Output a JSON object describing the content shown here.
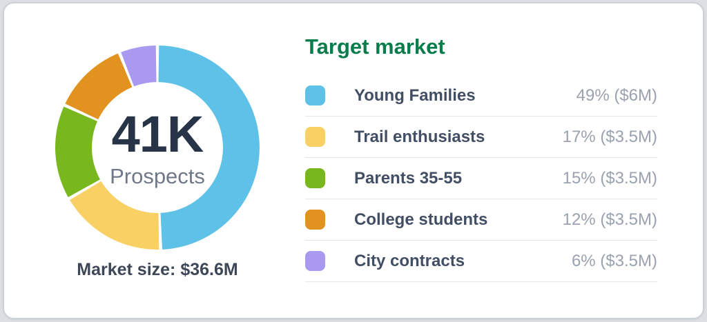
{
  "donut": {
    "center_value": "41K",
    "center_label": "Prospects",
    "caption": "Market size: $36.6M"
  },
  "legend": {
    "title": "Target market",
    "items": [
      {
        "label": "Young Families",
        "value": "49% ($6M)",
        "color": "#5ec1e8"
      },
      {
        "label": "Trail enthusiasts",
        "value": "17% ($3.5M)",
        "color": "#f8d064"
      },
      {
        "label": "Parents 35-55",
        "value": "15% ($3.5M)",
        "color": "#78b81e"
      },
      {
        "label": "College students",
        "value": "12% ($3.5M)",
        "color": "#e2921e"
      },
      {
        "label": "City contracts",
        "value": "6% ($3.5M)",
        "color": "#a99af0"
      }
    ]
  },
  "chart_data": {
    "type": "pie",
    "subtype": "donut",
    "title": "Target market",
    "categories": [
      "Young Families",
      "Trail enthusiasts",
      "Parents 35-55",
      "College students",
      "City contracts"
    ],
    "values": [
      49,
      17,
      15,
      12,
      6
    ],
    "value_unit": "percent",
    "value_labels": [
      "49% ($6M)",
      "17% ($3.5M)",
      "15% ($3.5M)",
      "12% ($3.5M)",
      "6% ($3.5M)"
    ],
    "colors": [
      "#5ec1e8",
      "#f8d064",
      "#78b81e",
      "#e2921e",
      "#a99af0"
    ],
    "center_text": "41K Prospects",
    "footer": "Market size: $36.6M",
    "legend_position": "right",
    "start_angle_deg": 0,
    "direction": "clockwise"
  },
  "theme": {
    "title_green": "#087d4c",
    "navy": "#273448",
    "label_slate": "#424e64",
    "value_gray": "#9aa2af",
    "divider": "#e3e5e9",
    "card_bg": "#ffffff",
    "page_bg": "#dcdfe3"
  }
}
